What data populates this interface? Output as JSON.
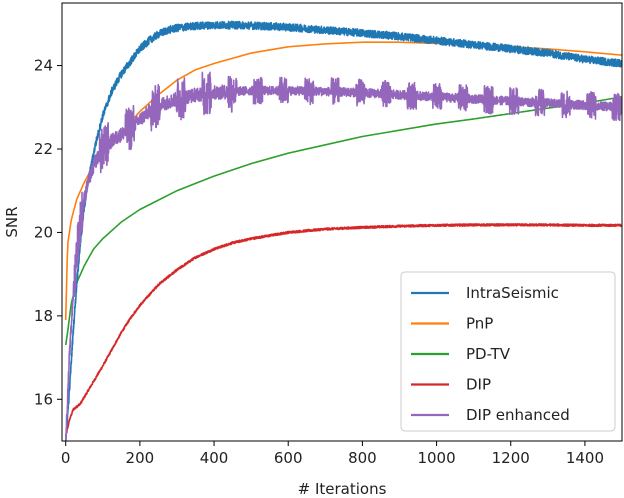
{
  "chart_data": {
    "type": "line",
    "title": "",
    "xlabel": "# Iterations",
    "ylabel": "SNR",
    "xlim": [
      -10,
      1500
    ],
    "ylim": [
      15.0,
      25.5
    ],
    "xticks": [
      0,
      200,
      400,
      600,
      800,
      1000,
      1200,
      1400
    ],
    "yticks": [
      16,
      18,
      20,
      22,
      24
    ],
    "grid": false,
    "legend_position": "bottom-right",
    "series": [
      {
        "name": "IntraSeismic",
        "color": "#1f77b4",
        "noise": 0.09,
        "x": [
          0,
          10,
          20,
          30,
          40,
          50,
          60,
          80,
          100,
          125,
          150,
          175,
          200,
          225,
          250,
          275,
          300,
          350,
          400,
          450,
          500,
          600,
          700,
          800,
          900,
          1000,
          1100,
          1200,
          1300,
          1400,
          1500
        ],
        "y": [
          15.0,
          16.2,
          17.6,
          18.8,
          19.8,
          20.6,
          21.2,
          22.1,
          22.8,
          23.4,
          23.8,
          24.1,
          24.4,
          24.6,
          24.75,
          24.85,
          24.9,
          24.95,
          24.97,
          24.97,
          24.96,
          24.92,
          24.85,
          24.78,
          24.7,
          24.6,
          24.5,
          24.4,
          24.3,
          24.15,
          24.05
        ]
      },
      {
        "name": "PnP",
        "color": "#ff7f0e",
        "noise": 0.0,
        "x": [
          0,
          5,
          15,
          30,
          50,
          75,
          100,
          150,
          200,
          250,
          300,
          350,
          400,
          500,
          600,
          700,
          800,
          900,
          1000,
          1100,
          1200,
          1300,
          1400,
          1500
        ],
        "y": [
          17.9,
          19.7,
          20.3,
          20.8,
          21.2,
          21.6,
          21.9,
          22.4,
          22.9,
          23.3,
          23.65,
          23.9,
          24.05,
          24.3,
          24.45,
          24.52,
          24.56,
          24.56,
          24.53,
          24.5,
          24.45,
          24.4,
          24.33,
          24.25
        ]
      },
      {
        "name": "PD-TV",
        "color": "#2ca02c",
        "noise": 0.0,
        "x": [
          0,
          5,
          15,
          30,
          50,
          75,
          100,
          150,
          200,
          300,
          400,
          500,
          600,
          700,
          800,
          900,
          1000,
          1100,
          1200,
          1300,
          1400,
          1500
        ],
        "y": [
          17.3,
          17.6,
          18.3,
          18.8,
          19.2,
          19.6,
          19.85,
          20.25,
          20.55,
          21.0,
          21.35,
          21.65,
          21.9,
          22.1,
          22.3,
          22.45,
          22.6,
          22.72,
          22.85,
          22.98,
          23.1,
          23.25
        ]
      },
      {
        "name": "DIP",
        "color": "#d62728",
        "noise": 0.025,
        "x": [
          0,
          10,
          20,
          40,
          60,
          80,
          100,
          125,
          150,
          175,
          200,
          250,
          300,
          350,
          400,
          450,
          500,
          600,
          700,
          800,
          900,
          1000,
          1100,
          1200,
          1300,
          1400,
          1500
        ],
        "y": [
          15.1,
          15.5,
          15.75,
          15.9,
          16.2,
          16.5,
          16.8,
          17.2,
          17.6,
          17.95,
          18.25,
          18.75,
          19.1,
          19.4,
          19.6,
          19.75,
          19.85,
          20.0,
          20.08,
          20.12,
          20.15,
          20.17,
          20.18,
          20.18,
          20.18,
          20.17,
          20.17
        ]
      },
      {
        "name": "DIP enhanced",
        "color": "#9467bd",
        "noise": 0.15,
        "x": [
          0,
          5,
          10,
          20,
          30,
          40,
          50,
          60,
          80,
          100,
          125,
          150,
          175,
          200,
          225,
          250,
          300,
          350,
          400,
          450,
          500,
          600,
          700,
          800,
          900,
          1000,
          1100,
          1200,
          1300,
          1400,
          1500
        ],
        "y": [
          15.0,
          16.0,
          17.0,
          18.5,
          19.6,
          20.3,
          20.8,
          21.2,
          21.7,
          22.0,
          22.2,
          22.35,
          22.5,
          22.7,
          22.9,
          23.05,
          23.2,
          23.3,
          23.35,
          23.38,
          23.4,
          23.4,
          23.38,
          23.35,
          23.3,
          23.25,
          23.2,
          23.15,
          23.1,
          23.05,
          23.0
        ]
      }
    ]
  }
}
